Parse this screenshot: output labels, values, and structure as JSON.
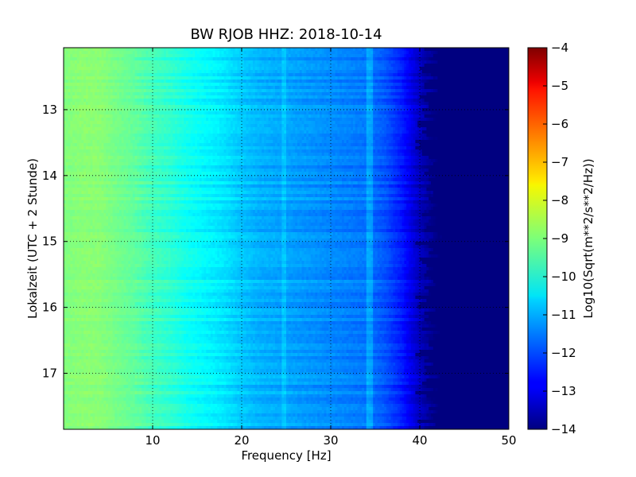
{
  "chart_data": {
    "type": "heatmap",
    "title": "BW RJOB HHZ: 2018-10-14",
    "xlabel": "Frequency [Hz]",
    "ylabel": "Lokalzeit (UTC + 2 Stunde)",
    "xlim": [
      0,
      50
    ],
    "ylim": [
      12.06,
      17.85
    ],
    "y_inverted": true,
    "x_ticks": [
      10,
      20,
      30,
      40,
      50
    ],
    "y_ticks": [
      13,
      14,
      15,
      16,
      17
    ],
    "grid": true,
    "colormap": "jet",
    "colorbar": {
      "label": "Log10(Sqrt(m**2/s**2/Hz))",
      "range": [
        -14,
        -4
      ],
      "ticks": [
        -4,
        -5,
        -6,
        -7,
        -8,
        -9,
        -10,
        -11,
        -12,
        -13,
        -14
      ]
    },
    "profile": {
      "description_values_freq_hz": [
        0,
        2,
        4,
        6,
        8,
        10,
        12,
        14,
        16,
        18,
        20,
        22,
        24,
        26,
        28,
        30,
        32,
        34,
        36,
        38,
        40,
        42,
        44,
        46,
        48,
        50
      ],
      "log10_amplitude": [
        -9.0,
        -8.9,
        -8.9,
        -9.1,
        -9.3,
        -9.6,
        -9.8,
        -10.1,
        -10.3,
        -10.5,
        -10.8,
        -11.0,
        -11.1,
        -11.2,
        -11.3,
        -11.4,
        -11.5,
        -11.6,
        -11.9,
        -12.5,
        -13.4,
        -14.0,
        -14.0,
        -14.0,
        -14.0,
        -14.0
      ]
    },
    "features": {
      "line_near_25hz": true,
      "line_near_35hz": true
    }
  }
}
